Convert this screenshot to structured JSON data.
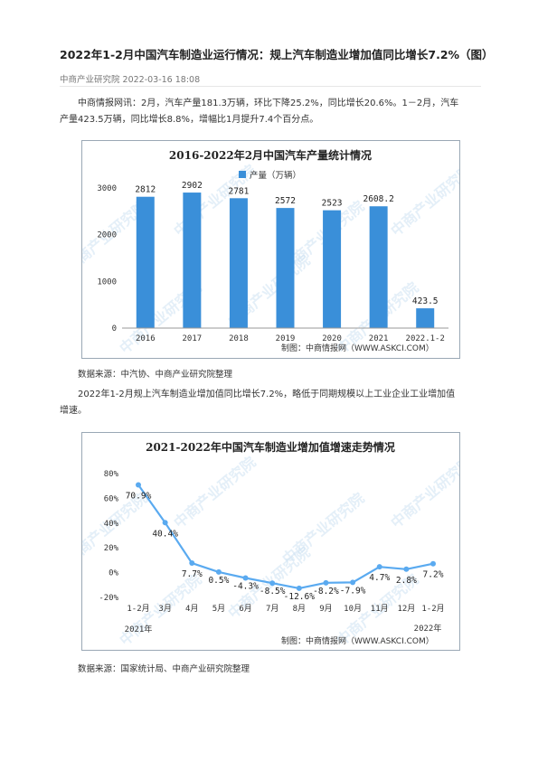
{
  "article": {
    "title": "2022年1-2月中国汽车制造业运行情况：规上汽车制造业增加值同比增长7.2%（图）",
    "meta": "中商产业研究院 2022-03-16 18:08",
    "para1_line1": "中商情报网讯：2月，汽车产量181.3万辆，环比下降25.2%，同比增长20.6%。1－2月，汽车",
    "para1_line2": "产量423.5万辆，同比增长8.8%，增幅比1月提升7.4个百分点。",
    "source1": "数据来源：中汽协、中商产业研究院整理",
    "para2_line1": "2022年1-2月规上汽车制造业增加值同比增长7.2%，略低于同期规模以上工业企业工业增加值",
    "para2_line2": "增速。",
    "source2": "数据来源：国家统计局、中商产业研究院整理"
  },
  "watermark_text": "中商产业研究院",
  "colors": {
    "bar": "#3a8fd9",
    "line": "#5aaaf0",
    "frame": "#9aa8b5",
    "watermark": "#cfe3f3"
  },
  "chart_data": [
    {
      "type": "bar",
      "title": "2016-2022年2月中国汽车产量统计情况",
      "categories": [
        "2016",
        "2017",
        "2018",
        "2019",
        "2020",
        "2021",
        "2022.1-2"
      ],
      "series": [
        {
          "name": "产量（万辆）",
          "values": [
            2812,
            2902,
            2781,
            2572,
            2523,
            2608.2,
            423.5
          ]
        }
      ],
      "data_labels": [
        "2812",
        "2902",
        "2781",
        "2572",
        "2523",
        "2608.2",
        "423.5"
      ],
      "yticks": [
        "0",
        "1000",
        "2000",
        "3000"
      ],
      "ylim": [
        0,
        3000
      ],
      "legend": "top-center",
      "credit": "制图：中商情报网（WWW.ASKCI.COM）"
    },
    {
      "type": "line",
      "title": "2021-2022年中国汽车制造业增加值增速走势情况",
      "categories": [
        "1-2月",
        "3月",
        "4月",
        "5月",
        "6月",
        "7月",
        "8月",
        "9月",
        "10月",
        "11月",
        "12月",
        "1-2月"
      ],
      "series": [
        {
          "values": [
            70.9,
            40.4,
            7.7,
            0.5,
            -4.3,
            -8.5,
            -12.6,
            -8.2,
            -7.9,
            4.7,
            2.8,
            7.2
          ]
        }
      ],
      "data_labels": [
        "70.9%",
        "40.4%",
        "7.7%",
        "0.5%",
        "-4.3%",
        "-8.5%",
        "-12.6%",
        "-8.2%",
        "-7.9%",
        "4.7%",
        "2.8%",
        "7.2%"
      ],
      "yticks": [
        "-20%",
        "0%",
        "20%",
        "40%",
        "60%",
        "80%"
      ],
      "ylim": [
        -20,
        80
      ],
      "year_labels": [
        "2021年",
        "2022年"
      ],
      "credit": "制图：中商情报网（WWW.ASKCI.COM）"
    }
  ]
}
